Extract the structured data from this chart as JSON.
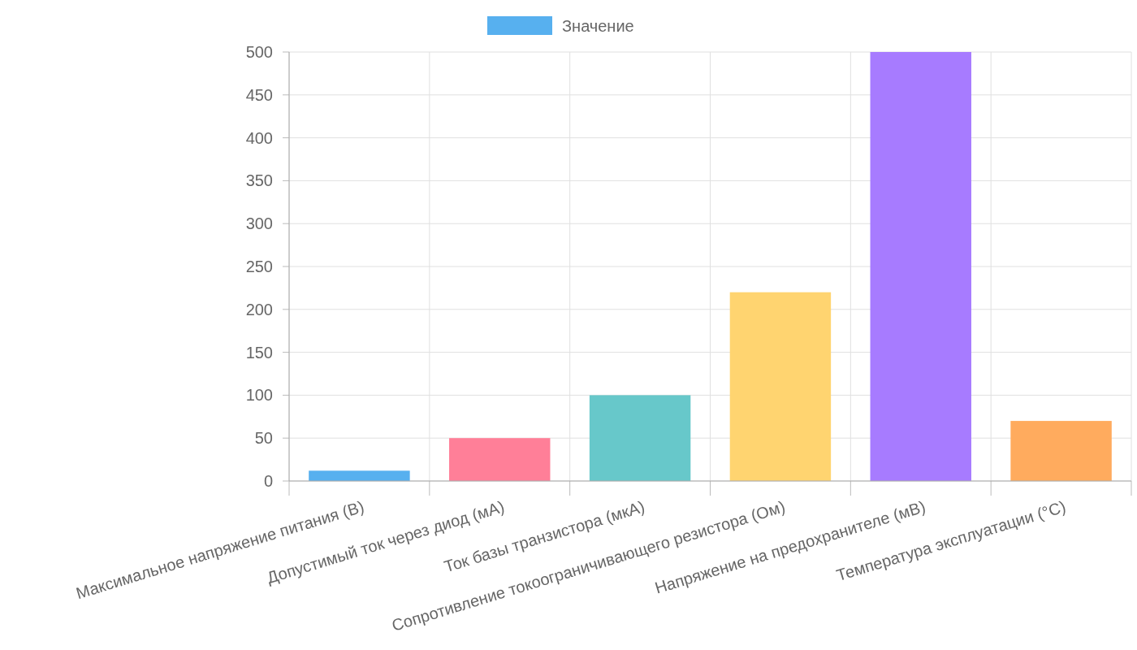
{
  "chart_data": {
    "type": "bar",
    "categories": [
      "Максимальное напряжение питания (В)",
      "Допустимый ток через диод (мА)",
      "Ток базы транзистора (мкА)",
      "Сопротивление токоограничивающего резистора (Ом)",
      "Напряжение на предохранителе (мВ)",
      "Температура эксплуатации (°C)"
    ],
    "series": [
      {
        "name": "Значение",
        "color": "#57b0ef",
        "colors": [
          "#57b0ef",
          "#ff7f98",
          "#67c8ca",
          "#ffd470",
          "#a77bff",
          "#ffab5e"
        ],
        "values": [
          12,
          50,
          100,
          220,
          500,
          70
        ]
      }
    ],
    "ylim": [
      0,
      500
    ],
    "yticks": [
      0,
      50,
      100,
      150,
      200,
      250,
      300,
      350,
      400,
      450,
      500
    ],
    "grid": true,
    "legend": "top"
  }
}
